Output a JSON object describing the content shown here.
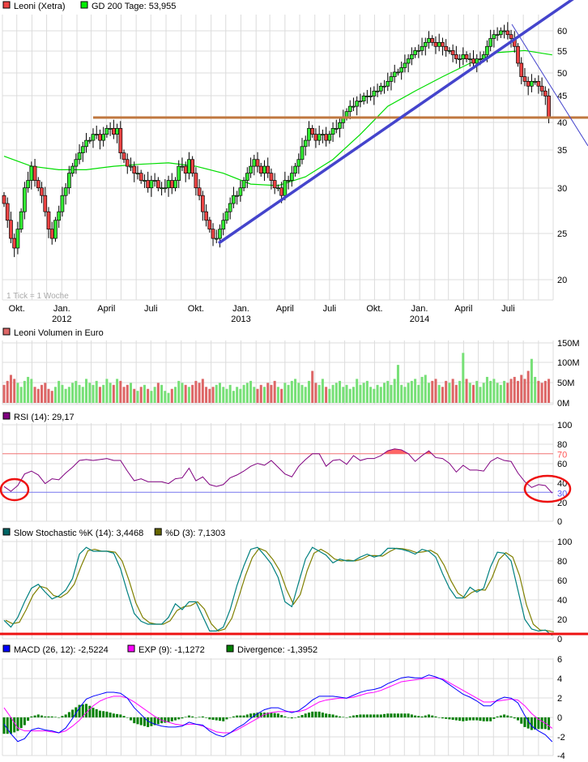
{
  "chart_data": [
    {
      "type": "candlestick",
      "legend": [
        {
          "label": "Leoni (Xetra)",
          "color": "#ee4444"
        },
        {
          "label": "GD 200 Tage: 53,955",
          "color": "#00ee00"
        }
      ],
      "note": "1 Tick = 1 Woche",
      "y_scale": "log",
      "ylim": [
        17.5,
        63
      ],
      "y_ticks": [
        "60",
        "55",
        "50",
        "45",
        "40",
        "35",
        "30",
        "25",
        "20"
      ],
      "x_ticks": [
        {
          "label": "Okt.",
          "year": "",
          "date": "2011-10-01"
        },
        {
          "label": "Jan.",
          "year": "2012",
          "date": "2012-01-01"
        },
        {
          "label": "April",
          "year": "",
          "date": "2012-04-01"
        },
        {
          "label": "Juli",
          "year": "",
          "date": "2012-07-01"
        },
        {
          "label": "Okt.",
          "year": "",
          "date": "2012-10-01"
        },
        {
          "label": "Jan.",
          "year": "2013",
          "date": "2013-01-01"
        },
        {
          "label": "April",
          "year": "",
          "date": "2013-04-01"
        },
        {
          "label": "Juli",
          "year": "",
          "date": "2013-07-01"
        },
        {
          "label": "Okt.",
          "year": "",
          "date": "2013-10-01"
        },
        {
          "label": "Jan.",
          "year": "2014",
          "date": "2014-01-01"
        },
        {
          "label": "April",
          "year": "",
          "date": "2014-04-01"
        },
        {
          "label": "Juli",
          "year": "",
          "date": "2014-07-01"
        }
      ],
      "start_date": "2011-09-05",
      "interval": "1 week",
      "weekly_close": [
        28,
        26,
        24,
        23,
        25,
        27,
        30,
        31,
        33,
        31,
        30,
        29,
        27,
        25,
        24,
        26,
        27,
        29,
        30,
        32,
        33,
        34,
        35,
        36,
        37,
        37,
        38,
        38,
        37,
        38,
        39,
        39,
        38,
        39,
        35,
        34,
        33,
        33,
        32,
        32,
        31,
        31,
        30,
        31,
        31,
        30,
        30,
        30,
        31,
        30,
        31,
        33,
        33,
        32,
        34,
        32,
        30,
        29,
        27,
        26,
        25,
        24,
        24,
        25,
        26,
        27,
        28,
        29,
        29,
        30,
        31,
        32,
        33,
        34,
        33,
        32,
        33,
        32,
        31,
        30,
        30,
        29,
        31,
        31,
        32,
        33,
        34,
        36,
        37,
        39,
        38,
        37,
        38,
        38,
        37,
        38,
        39,
        39,
        40,
        41,
        42,
        43,
        43,
        44,
        44,
        45,
        45,
        45,
        46,
        46,
        47,
        47,
        48,
        49,
        50,
        50,
        51,
        52,
        53,
        54,
        55,
        55,
        56,
        57,
        58,
        57,
        56,
        57,
        56,
        55,
        55,
        54,
        53,
        53,
        54,
        53,
        53,
        52,
        53,
        53,
        54,
        56,
        58,
        59,
        59,
        60,
        60,
        59,
        58,
        56,
        52,
        49,
        48,
        47,
        48,
        48,
        47,
        46,
        45,
        41
      ],
      "ma200": {
        "name": "GD 200 Tage",
        "interval": "8 weeks",
        "values": [
          34.5,
          33,
          32.5,
          32.5,
          33,
          33.3,
          33.5,
          33,
          32,
          30.5,
          30.3,
          31.5,
          34,
          38,
          43,
          46,
          49,
          52,
          54.5,
          55,
          53.955
        ]
      },
      "horizontal_line": 40.8,
      "colors": {
        "up": "#33ee33",
        "down": "#ee4444",
        "ma": "#00dd00",
        "trend": "#4444cc",
        "support": "#c07840"
      }
    },
    {
      "type": "bar",
      "legend": [
        {
          "label": "Leoni Volumen in Euro",
          "color": "#dd6666"
        }
      ],
      "y_ticks": [
        "150M",
        "100M",
        "50M",
        "0M"
      ],
      "ylim": [
        0,
        155
      ],
      "unit": "M",
      "interval": "1 week",
      "values": [
        45,
        55,
        70,
        60,
        50,
        40,
        55,
        65,
        60,
        40,
        35,
        45,
        50,
        35,
        30,
        40,
        55,
        45,
        35,
        40,
        50,
        55,
        45,
        40,
        60,
        50,
        45,
        55,
        40,
        45,
        60,
        50,
        45,
        60,
        55,
        40,
        45,
        50,
        35,
        30,
        40,
        45,
        35,
        30,
        40,
        50,
        45,
        30,
        25,
        35,
        40,
        55,
        50,
        45,
        40,
        45,
        55,
        50,
        60,
        40,
        35,
        40,
        45,
        50,
        40,
        35,
        45,
        30,
        40,
        35,
        45,
        50,
        55,
        40,
        35,
        45,
        40,
        50,
        45,
        55,
        40,
        35,
        50,
        45,
        55,
        60,
        50,
        45,
        40,
        55,
        80,
        50,
        45,
        60,
        40,
        35,
        45,
        50,
        55,
        40,
        45,
        35,
        40,
        60,
        45,
        50,
        55,
        40,
        35,
        45,
        40,
        50,
        55,
        45,
        60,
        95,
        45,
        40,
        50,
        55,
        60,
        45,
        65,
        70,
        50,
        55,
        60,
        45,
        40,
        55,
        50,
        60,
        45,
        55,
        125,
        60,
        50,
        45,
        55,
        40,
        50,
        65,
        55,
        60,
        50,
        45,
        55,
        50,
        60,
        65,
        55,
        70,
        60,
        80,
        110,
        65,
        55,
        50,
        55,
        60
      ],
      "colors": {
        "up": "#77e077",
        "down": "#dd6666"
      }
    },
    {
      "type": "line",
      "legend": [
        {
          "label": "RSI (14): 29,17",
          "color": "#800080"
        }
      ],
      "y_ticks": [
        "100",
        "80",
        "60",
        "40",
        "20",
        "0"
      ],
      "ylim": [
        0,
        100
      ],
      "levels": [
        {
          "value": 70,
          "label": "70",
          "color": "#ff5555"
        },
        {
          "value": 30,
          "label": "30",
          "color": "#5555ff"
        }
      ],
      "interval": "2 weeks",
      "values": [
        36,
        31,
        37,
        49,
        52,
        48,
        39,
        44,
        43,
        50,
        56,
        63,
        64,
        63,
        64,
        65,
        63,
        63,
        52,
        42,
        44,
        41,
        41,
        41,
        39,
        44,
        45,
        55,
        42,
        46,
        38,
        36,
        38,
        45,
        48,
        52,
        57,
        60,
        58,
        63,
        56,
        49,
        46,
        57,
        64,
        70,
        70,
        57,
        63,
        64,
        59,
        68,
        63,
        65,
        65,
        68,
        73,
        75,
        74,
        70,
        62,
        68,
        73,
        66,
        65,
        60,
        51,
        58,
        53,
        53,
        52,
        62,
        66,
        63,
        62,
        50,
        41,
        35,
        38,
        37,
        29.17
      ],
      "color": "#800080"
    },
    {
      "type": "line",
      "legend": [
        {
          "label": "Slow Stochastic %K (14): 3,4468",
          "color": "#006666"
        },
        {
          "label": "%D (3): 7,1303",
          "color": "#666600"
        }
      ],
      "y_ticks": [
        "100",
        "80",
        "60",
        "40",
        "20",
        "0"
      ],
      "ylim": [
        0,
        100
      ],
      "interval": "2 weeks",
      "k_values": [
        19,
        12,
        22,
        38,
        52,
        56,
        48,
        41,
        44,
        50,
        62,
        87,
        94,
        90,
        90,
        90,
        88,
        72,
        48,
        26,
        18,
        15,
        15,
        15,
        22,
        36,
        30,
        38,
        38,
        23,
        8,
        8,
        12,
        30,
        55,
        75,
        92,
        94,
        86,
        77,
        63,
        38,
        33,
        58,
        82,
        94,
        90,
        86,
        78,
        82,
        80,
        80,
        84,
        87,
        84,
        86,
        93,
        93,
        92,
        90,
        87,
        92,
        90,
        84,
        67,
        52,
        42,
        42,
        53,
        48,
        52,
        74,
        89,
        88,
        80,
        50,
        20,
        10,
        8,
        9,
        3.4468
      ],
      "colors": {
        "k": "#008080",
        "d": "#808000"
      },
      "reference_line": 5
    },
    {
      "type": "line+bar",
      "legend": [
        {
          "label": "MACD (26, 12): -2,5224",
          "color": "#0000ff"
        },
        {
          "label": "EXP (9): -1,1272",
          "color": "#ff00ff"
        },
        {
          "label": "Divergence: -1,3952",
          "color": "#008000"
        }
      ],
      "y_ticks": [
        "6",
        "4",
        "2",
        "0",
        "-2",
        "-4"
      ],
      "ylim": [
        -4,
        6
      ],
      "interval": "2 weeks",
      "macd": [
        -0.7,
        -1.7,
        -2.5,
        -2.2,
        -1.3,
        -1.1,
        -1.3,
        -1.4,
        -1.6,
        -1.1,
        -0.1,
        1.0,
        1.9,
        2.2,
        2.4,
        2.6,
        2.6,
        2.5,
        2.0,
        1.0,
        0.3,
        -0.4,
        -0.7,
        -0.9,
        -1.0,
        -1.0,
        -0.9,
        -0.5,
        -0.7,
        -0.8,
        -1.4,
        -1.8,
        -2.0,
        -1.6,
        -1.1,
        -0.7,
        -0.1,
        0.4,
        0.8,
        1.0,
        1.0,
        0.7,
        0.5,
        0.7,
        1.2,
        1.8,
        2.2,
        2.2,
        2.2,
        2.1,
        2.0,
        2.3,
        2.6,
        2.8,
        2.9,
        3.1,
        3.5,
        3.8,
        4.1,
        4.2,
        4.1,
        4.1,
        4.4,
        4.2,
        3.9,
        3.4,
        2.9,
        2.4,
        2.1,
        1.7,
        1.2,
        1.2,
        1.8,
        2.1,
        2.0,
        1.5,
        0.2,
        -0.9,
        -1.4,
        -1.8,
        -2.5224
      ],
      "exp": [
        1.0,
        0.0,
        -1.1,
        -1.4,
        -1.4,
        -1.4,
        -1.4,
        -1.5,
        -1.6,
        -1.4,
        -0.9,
        -0.3,
        0.5,
        1.2,
        1.7,
        2.0,
        2.2,
        2.2,
        2.0,
        1.6,
        1.1,
        0.6,
        0.1,
        -0.3,
        -0.5,
        -0.7,
        -0.8,
        -0.7,
        -0.7,
        -0.9,
        -1.2,
        -1.5,
        -1.6,
        -1.6,
        -1.3,
        -0.9,
        -0.5,
        -0.1,
        0.3,
        0.5,
        0.6,
        0.6,
        0.6,
        0.6,
        0.8,
        1.2,
        1.6,
        1.8,
        1.9,
        2.0,
        2.0,
        2.1,
        2.3,
        2.5,
        2.6,
        2.8,
        3.1,
        3.4,
        3.7,
        3.8,
        3.9,
        4.0,
        4.1,
        4.1,
        4.0,
        3.6,
        3.2,
        2.8,
        2.4,
        2.0,
        1.6,
        1.6,
        1.7,
        1.8,
        1.9,
        1.8,
        1.2,
        0.4,
        -0.2,
        -0.6,
        -1.1272
      ],
      "colors": {
        "macd": "#0000ff",
        "exp": "#ff00ff",
        "divergence": "#008000"
      }
    }
  ]
}
